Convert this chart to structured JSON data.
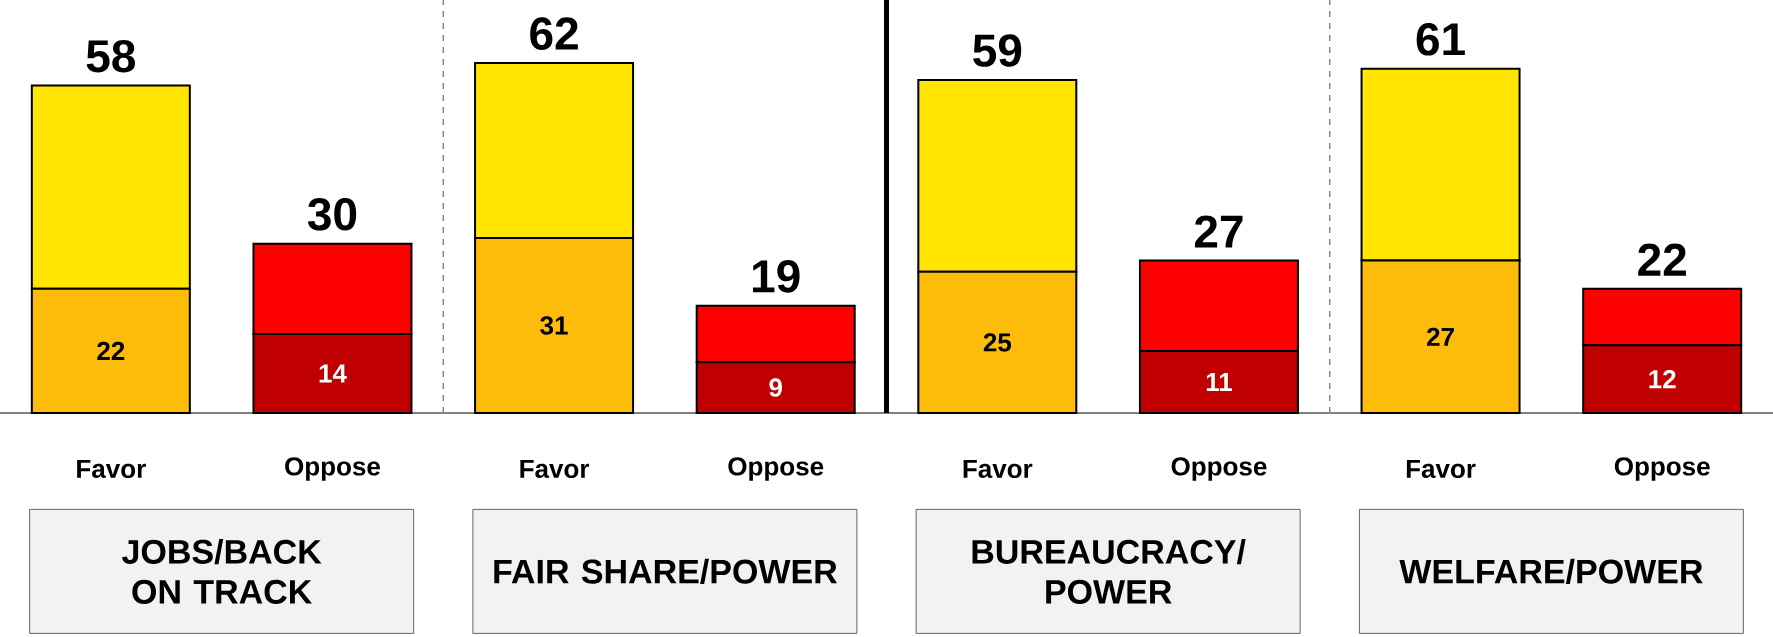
{
  "chart_data": [
    {
      "type": "bar",
      "stacked": true,
      "xlabel": "JOBS/BACK ON TRACK",
      "categories": [
        "Favor",
        "Oppose"
      ],
      "series": [
        {
          "colors": [
            "#fdbb0a",
            "#c00000"
          ],
          "values": [
            22,
            14
          ],
          "value_labels": [
            "22",
            "14"
          ]
        },
        {
          "colors": [
            "#ffe500",
            "#ff0000"
          ],
          "values": [
            36,
            16
          ]
        }
      ],
      "totals": [
        "58",
        "30"
      ]
    },
    {
      "type": "bar",
      "stacked": true,
      "xlabel": "FAIR SHARE/POWER",
      "categories": [
        "Favor",
        "Oppose"
      ],
      "series": [
        {
          "colors": [
            "#fdbb0a",
            "#c00000"
          ],
          "values": [
            31,
            9
          ],
          "value_labels": [
            "31",
            "9"
          ]
        },
        {
          "colors": [
            "#ffe500",
            "#ff0000"
          ],
          "values": [
            31,
            10
          ]
        }
      ],
      "totals": [
        "62",
        "19"
      ]
    },
    {
      "type": "bar",
      "stacked": true,
      "xlabel": "BUREAUCRACY/ POWER",
      "categories": [
        "Favor",
        "Oppose"
      ],
      "series": [
        {
          "colors": [
            "#fdbb0a",
            "#c00000"
          ],
          "values": [
            25,
            11
          ],
          "value_labels": [
            "25",
            "11"
          ]
        },
        {
          "colors": [
            "#ffe500",
            "#ff0000"
          ],
          "values": [
            34,
            16
          ]
        }
      ],
      "totals": [
        "59",
        "27"
      ]
    },
    {
      "type": "bar",
      "stacked": true,
      "xlabel": "WELFARE/POWER",
      "categories": [
        "Favor",
        "Oppose"
      ],
      "series": [
        {
          "colors": [
            "#fdbb0a",
            "#c00000"
          ],
          "values": [
            27,
            12
          ],
          "value_labels": [
            "27",
            "12"
          ]
        },
        {
          "colors": [
            "#ffe500",
            "#ff0000"
          ],
          "values": [
            34,
            10
          ]
        }
      ],
      "totals": [
        "61",
        "22"
      ]
    }
  ]
}
